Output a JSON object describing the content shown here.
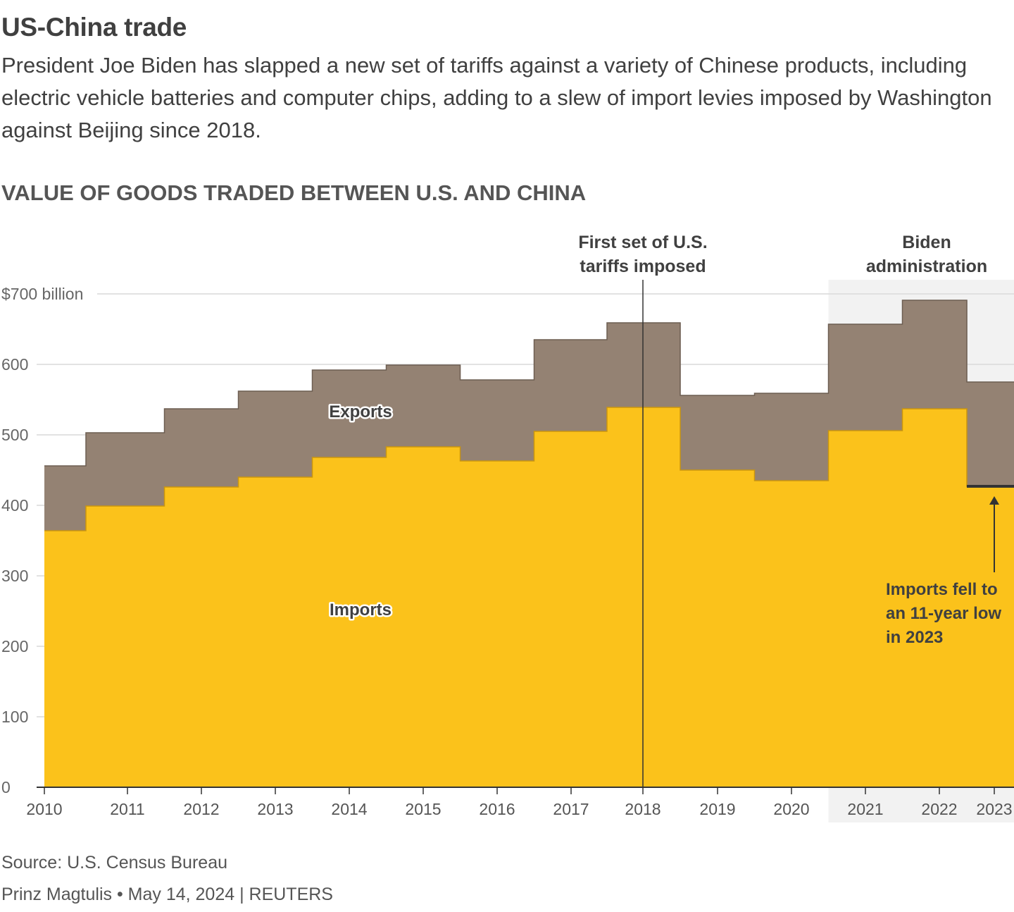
{
  "header": {
    "title": "US-China trade",
    "dek": "President Joe Biden has slapped a new set of tariffs against a variety of Chinese products, including electric vehicle batteries and computer chips, adding to a slew of import levies imposed by Washington against Beijing since 2018."
  },
  "footer": {
    "source": "Source: U.S. Census Bureau",
    "credit": "Prinz Magtulis • May 14, 2024 | REUTERS"
  },
  "colors": {
    "imports": "#FBC21B",
    "exports": "#948273",
    "gridline": "#d9d9d9",
    "biden_shade": "#f2f2f2",
    "text": "#404040",
    "axis": "#555555"
  },
  "chart_data": {
    "type": "area",
    "title": "VALUE OF GOODS TRADED BETWEEN U.S. AND CHINA",
    "categories": [
      "2010",
      "2011",
      "2012",
      "2013",
      "2014",
      "2015",
      "2016",
      "2017",
      "2018",
      "2019",
      "2020",
      "2021",
      "2022",
      "2023"
    ],
    "series": [
      {
        "name": "Imports",
        "values": [
          364,
          399,
          426,
          440,
          468,
          483,
          463,
          505,
          539,
          450,
          435,
          506,
          537,
          427
        ]
      },
      {
        "name": "Exports",
        "values": [
          92,
          104,
          111,
          122,
          124,
          116,
          115,
          130,
          120,
          106,
          124,
          151,
          154,
          148
        ]
      }
    ],
    "stacked": true,
    "ylim": [
      0,
      700
    ],
    "yticks": [
      0,
      100,
      200,
      300,
      400,
      500,
      600,
      700
    ],
    "ytick_labels": [
      "0",
      "100",
      "200",
      "300",
      "400",
      "500",
      "600",
      "$700 billion"
    ],
    "grid": true,
    "legend": "inline labels",
    "shaded_period": {
      "from": "2021",
      "to": "2023",
      "label": "Biden administration"
    },
    "annotations": {
      "tariff_line": {
        "at": "2018",
        "label": "First set of U.S. tariffs imposed"
      },
      "low_point": {
        "at": "2023",
        "label": "Imports fell to an 11-year low in 2023"
      }
    }
  }
}
